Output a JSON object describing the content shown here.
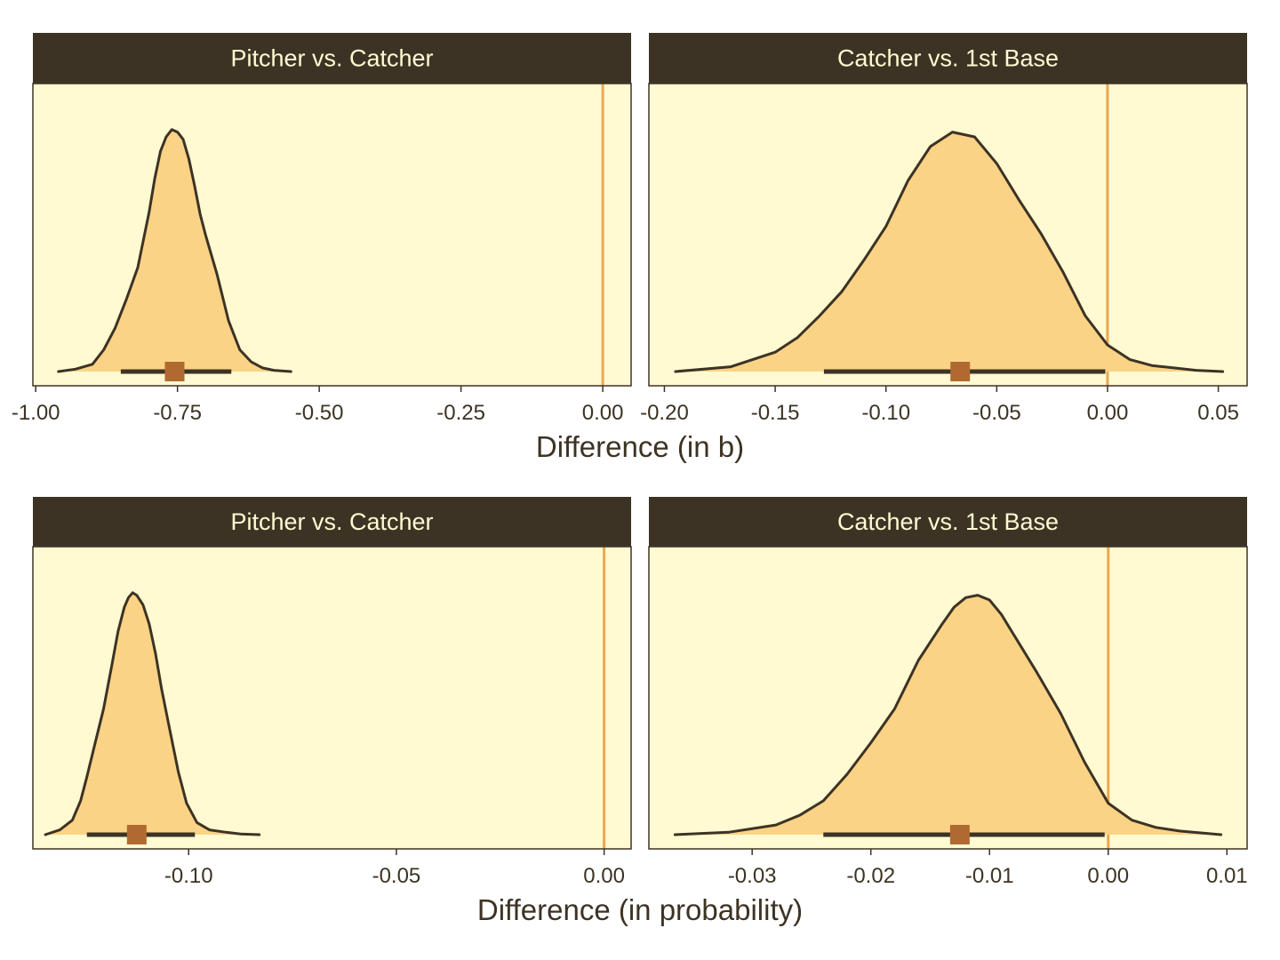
{
  "colors": {
    "panel_bg": "#fffad2",
    "strip_bg": "#3d3324",
    "strip_text": "#fffad2",
    "density_fill": "#fad386",
    "density_line": "#3d3324",
    "zero_line": "#eba74d",
    "point": "#b06a31",
    "interval": "#3d3324"
  },
  "chart_data": [
    {
      "type": "area",
      "subtype": "density-halfeye",
      "row_xlabel": "Difference (in b)",
      "panel": {
        "strip_label": "Pitcher vs. Catcher",
        "xlim": [
          -1.005,
          0.05
        ],
        "xticks": [
          -1.0,
          -0.75,
          -0.5,
          -0.25,
          0.0
        ],
        "xtick_labels": [
          "-1.00",
          "-0.75",
          "-0.50",
          "-0.25",
          "0.00"
        ],
        "reference_line_x": 0.0,
        "point_estimate": -0.755,
        "interval": [
          -0.85,
          -0.655
        ],
        "density": {
          "x": [
            -0.96,
            -0.93,
            -0.9,
            -0.88,
            -0.86,
            -0.84,
            -0.82,
            -0.8,
            -0.79,
            -0.78,
            -0.77,
            -0.76,
            -0.75,
            -0.74,
            -0.73,
            -0.72,
            -0.71,
            -0.7,
            -0.68,
            -0.66,
            -0.64,
            -0.62,
            -0.6,
            -0.58,
            -0.55
          ],
          "y": [
            0.0,
            0.01,
            0.03,
            0.09,
            0.18,
            0.3,
            0.43,
            0.66,
            0.8,
            0.91,
            0.97,
            1.0,
            0.99,
            0.96,
            0.88,
            0.77,
            0.65,
            0.56,
            0.4,
            0.21,
            0.09,
            0.04,
            0.015,
            0.005,
            0.0
          ]
        }
      }
    },
    {
      "type": "area",
      "subtype": "density-halfeye",
      "row_xlabel": "Difference (in b)",
      "panel": {
        "strip_label": "Catcher vs. 1st Base",
        "xlim": [
          -0.207,
          0.063
        ],
        "xticks": [
          -0.2,
          -0.15,
          -0.1,
          -0.05,
          0.0,
          0.05
        ],
        "xtick_labels": [
          "-0.20",
          "-0.15",
          "-0.10",
          "-0.05",
          "0.00",
          "0.05"
        ],
        "reference_line_x": 0.0,
        "point_estimate": -0.0665,
        "interval": [
          -0.128,
          -0.001
        ],
        "density": {
          "x": [
            -0.195,
            -0.17,
            -0.15,
            -0.14,
            -0.13,
            -0.12,
            -0.11,
            -0.1,
            -0.09,
            -0.08,
            -0.07,
            -0.06,
            -0.05,
            -0.04,
            -0.03,
            -0.02,
            -0.01,
            0.0,
            0.01,
            0.02,
            0.03,
            0.04,
            0.052
          ],
          "y": [
            0.0,
            0.02,
            0.08,
            0.14,
            0.23,
            0.33,
            0.46,
            0.6,
            0.79,
            0.93,
            0.99,
            0.97,
            0.86,
            0.71,
            0.57,
            0.41,
            0.23,
            0.11,
            0.05,
            0.025,
            0.015,
            0.005,
            0.0
          ]
        }
      }
    },
    {
      "type": "area",
      "subtype": "density-halfeye",
      "row_xlabel": "Difference (in probability)",
      "panel": {
        "strip_label": "Pitcher vs. Catcher",
        "xlim": [
          -0.1375,
          0.0065
        ],
        "xticks": [
          -0.1,
          -0.05,
          0.0
        ],
        "xtick_labels": [
          "-0.10",
          "-0.05",
          "0.00"
        ],
        "reference_line_x": 0.0,
        "point_estimate": -0.1125,
        "interval": [
          -0.1245,
          -0.0985
        ],
        "density": {
          "x": [
            -0.1345,
            -0.131,
            -0.128,
            -0.126,
            -0.1245,
            -0.1225,
            -0.1205,
            -0.1185,
            -0.117,
            -0.1155,
            -0.1145,
            -0.1135,
            -0.1125,
            -0.111,
            -0.1095,
            -0.108,
            -0.1065,
            -0.1045,
            -0.1025,
            -0.1005,
            -0.098,
            -0.095,
            -0.091,
            -0.0875,
            -0.083
          ],
          "y": [
            0.0,
            0.02,
            0.06,
            0.14,
            0.24,
            0.38,
            0.52,
            0.7,
            0.84,
            0.94,
            0.98,
            1.0,
            0.99,
            0.95,
            0.87,
            0.75,
            0.6,
            0.43,
            0.26,
            0.13,
            0.05,
            0.02,
            0.01,
            0.003,
            0.0
          ]
        }
      }
    },
    {
      "type": "area",
      "subtype": "density-halfeye",
      "row_xlabel": "Difference (in probability)",
      "panel": {
        "strip_label": "Catcher vs. 1st Base",
        "xlim": [
          -0.0387,
          0.0117
        ],
        "xticks": [
          -0.03,
          -0.02,
          -0.01,
          0.0,
          0.01
        ],
        "xtick_labels": [
          "-0.03",
          "-0.02",
          "-0.01",
          "0.00",
          "0.01"
        ],
        "reference_line_x": 0.0,
        "point_estimate": -0.0125,
        "interval": [
          -0.024,
          -0.0003
        ],
        "density": {
          "x": [
            -0.0365,
            -0.032,
            -0.028,
            -0.026,
            -0.024,
            -0.022,
            -0.02,
            -0.018,
            -0.016,
            -0.014,
            -0.013,
            -0.012,
            -0.011,
            -0.01,
            -0.009,
            -0.008,
            -0.006,
            -0.004,
            -0.002,
            0.0,
            0.002,
            0.004,
            0.006,
            0.0095
          ],
          "y": [
            0.0,
            0.01,
            0.04,
            0.08,
            0.14,
            0.25,
            0.38,
            0.52,
            0.72,
            0.87,
            0.94,
            0.98,
            0.99,
            0.97,
            0.91,
            0.83,
            0.67,
            0.5,
            0.3,
            0.13,
            0.06,
            0.03,
            0.015,
            0.0
          ]
        }
      }
    }
  ]
}
